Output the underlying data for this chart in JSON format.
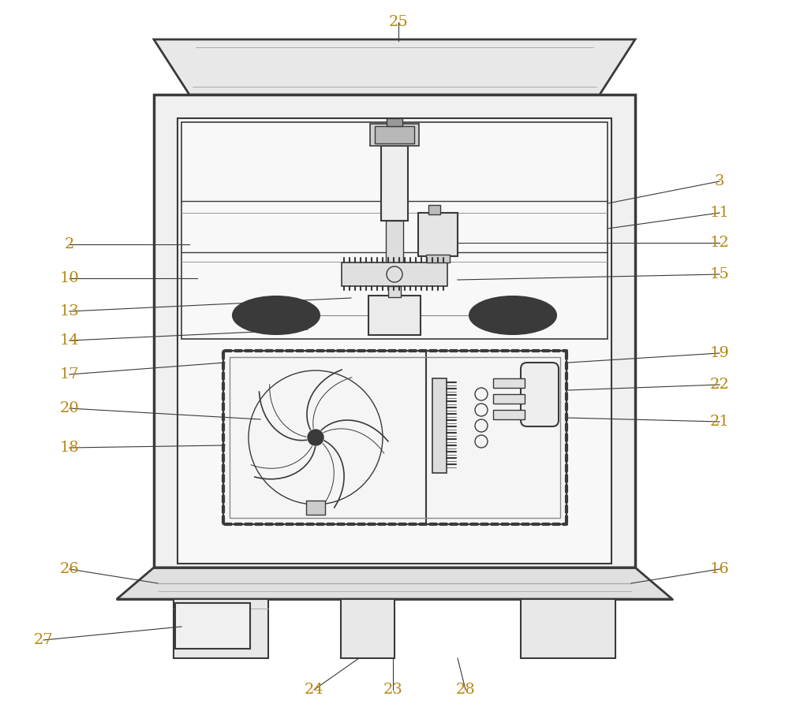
{
  "bg_color": "#ffffff",
  "line_color": "#3a3a3a",
  "label_color": "#b8860b",
  "fig_width": 10.0,
  "fig_height": 9.02,
  "label_fs": 14
}
